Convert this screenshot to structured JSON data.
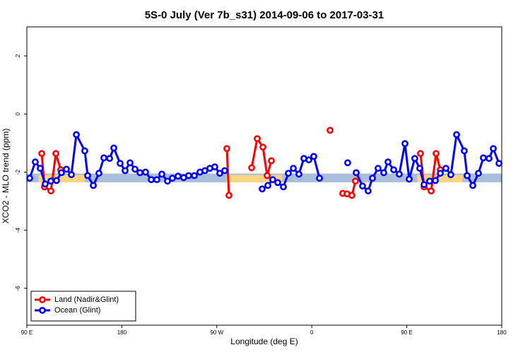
{
  "chart_data": {
    "type": "line",
    "title": "5S-0 July (Ver 7b_s31)   2014-09-06 to 2017-03-31",
    "x_label": "Longitude (deg E)",
    "y_label": "XCO2 - MLO trend (ppm)",
    "xlim": [
      90,
      540
    ],
    "ylim": [
      -7.27,
      3.0
    ],
    "xticks": [
      {
        "value": 90,
        "label": "90 E"
      },
      180,
      {
        "value": 270,
        "label": "90 W"
      },
      {
        "value": 360,
        "label": "0"
      },
      {
        "value": 450,
        "label": "90 E"
      },
      {
        "value": 540,
        "label": "180"
      }
    ],
    "yticks": [
      -6,
      -4,
      -2,
      0,
      2
    ],
    "legend": "bottom-left",
    "bands": [
      {
        "color": "#a9bedd",
        "x": [
          90,
          540
        ],
        "y": [
          -2.35,
          -2.05
        ]
      },
      {
        "color": "#fdd581",
        "x": [
          101,
          145
        ],
        "y": [
          -2.35,
          -2.1
        ]
      },
      {
        "color": "#fdd581",
        "x": [
          279,
          332
        ],
        "y": [
          -2.35,
          -2.1
        ]
      },
      {
        "color": "#fdd581",
        "x": [
          460,
          503
        ],
        "y": [
          -2.35,
          -2.1
        ]
      }
    ],
    "series": [
      {
        "name": "Land (Nadir&Glint)",
        "color": "#ff0000",
        "x": [
          104.1,
          106.7,
          112.8,
          117.5,
          122.1,
          null,
          279.5,
          281.5,
          null,
          303.0,
          308.3,
          313.7,
          317.7,
          321.7,
          null,
          377.3,
          null,
          389.3,
          393.4,
          398.0,
          401.4,
          null,
          463.0,
          466.4,
          473.1,
          477.8,
          481.8
        ],
        "values": [
          -1.36,
          -2.51,
          -2.65,
          -1.36,
          -1.92,
          null,
          -1.19,
          -2.8,
          null,
          -1.85,
          -0.85,
          -1.14,
          -2.12,
          -1.61,
          null,
          -0.56,
          null,
          -2.73,
          -2.75,
          -2.8,
          -2.31,
          null,
          -1.36,
          -2.51,
          -2.65,
          -1.36,
          -1.92
        ]
      },
      {
        "name": "Ocean (Glint)",
        "color": "#0000ff",
        "x": [
          92.7,
          98.0,
          102.7,
          107.4,
          112.8,
          118.1,
          122.8,
          127.5,
          132.2,
          136.9,
          144.9,
          147.6,
          153.0,
          158.3,
          163.0,
          168.4,
          172.4,
          178.4,
          183.1,
          187.8,
          192.5,
          197.2,
          202.5,
          207.9,
          213.2,
          217.9,
          223.3,
          227.9,
          233.3,
          238.6,
          243.3,
          248.7,
          254.0,
          258.7,
          263.4,
          268.1,
          272.8,
          277.5,
          null,
          313.0,
          318.4,
          323.0,
          327.7,
          333.1,
          337.8,
          342.5,
          347.8,
          352.5,
          357.2,
          361.9,
          367.3,
          null,
          394.0,
          null,
          402.1,
          408.1,
          413.4,
          417.5,
          422.8,
          428.2,
          432.2,
          437.6,
          442.9,
          448.3,
          452.3,
          457.6,
          462.3,
          466.4,
          471.7,
          477.1,
          481.8,
          487.1,
          491.8,
          497.2,
          504.5,
          507.2,
          512.6,
          517.9,
          522.6,
          528.0,
          532.0,
          537.4
        ],
        "values": [
          -2.21,
          -1.65,
          -1.87,
          -2.41,
          -2.31,
          -2.29,
          -2.02,
          -1.9,
          -2.09,
          -0.71,
          -1.27,
          -2.12,
          -2.46,
          -2.04,
          -1.51,
          -1.53,
          -1.17,
          -1.7,
          -1.95,
          -1.68,
          -1.9,
          -2.02,
          -2.0,
          -2.26,
          -2.26,
          -2.07,
          -2.31,
          -2.21,
          -2.14,
          -2.19,
          -2.12,
          -2.12,
          -2.0,
          -1.95,
          -1.87,
          -1.82,
          -2.04,
          -1.95,
          null,
          -2.58,
          -2.46,
          -2.26,
          -2.36,
          -2.51,
          -2.04,
          -1.87,
          -2.07,
          -1.53,
          -1.58,
          -1.46,
          -2.21,
          null,
          -1.68,
          null,
          -2.02,
          -2.48,
          -2.65,
          -2.21,
          -1.87,
          -2.02,
          -1.65,
          -1.92,
          -2.07,
          -1.02,
          -2.24,
          -1.53,
          -1.87,
          -2.43,
          -2.31,
          -2.29,
          -2.04,
          -1.87,
          -2.09,
          -0.71,
          -1.27,
          -2.12,
          -2.46,
          -2.04,
          -1.51,
          -1.53,
          -1.19,
          -1.7
        ]
      }
    ]
  }
}
